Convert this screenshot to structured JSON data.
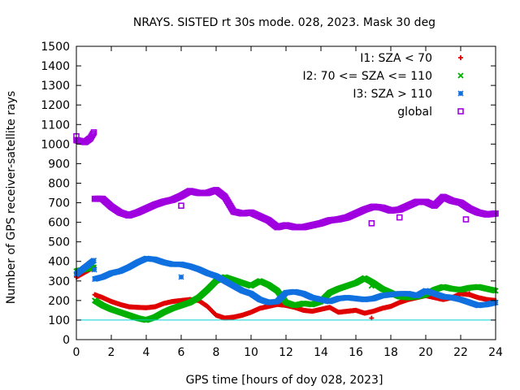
{
  "chart_data": {
    "type": "scatter",
    "title": "NRAYS. SISTED rt 30s mode. 028, 2023. Mask 30 deg",
    "xlabel": "GPS time [hours of doy 028, 2023]",
    "ylabel": "Number of GPS receiver-satellite rays",
    "xlim": [
      0,
      24
    ],
    "ylim": [
      0,
      1500
    ],
    "xticks": [
      "0",
      "2",
      "4",
      "6",
      "8",
      "10",
      "12",
      "14",
      "16",
      "18",
      "20",
      "22",
      "24"
    ],
    "yticks": [
      "0",
      "100",
      "200",
      "300",
      "400",
      "500",
      "600",
      "700",
      "800",
      "900",
      "1000",
      "1100",
      "1200",
      "1300",
      "1400",
      "1500"
    ],
    "grid": false,
    "legend_position": "top-right",
    "threshold_line": {
      "y": 100,
      "color": "#00d0d0"
    },
    "series": [
      {
        "name": "I1: SZA < 70",
        "marker": "+",
        "color": "#e00000",
        "points": [
          [
            0,
            320
          ],
          [
            0.5,
            345
          ],
          [
            1.0,
            370
          ],
          [
            1.05,
            230
          ],
          [
            1.5,
            215
          ],
          [
            2,
            195
          ],
          [
            2.5,
            180
          ],
          [
            3,
            168
          ],
          [
            3.5,
            165
          ],
          [
            4,
            163
          ],
          [
            4.5,
            168
          ],
          [
            5,
            185
          ],
          [
            5.5,
            195
          ],
          [
            6,
            200
          ],
          [
            6.5,
            205
          ],
          [
            7,
            200
          ],
          [
            7.5,
            170
          ],
          [
            8,
            125
          ],
          [
            8.5,
            110
          ],
          [
            9,
            115
          ],
          [
            9.5,
            125
          ],
          [
            10,
            140
          ],
          [
            10.5,
            160
          ],
          [
            11,
            170
          ],
          [
            11.5,
            180
          ],
          [
            12,
            175
          ],
          [
            12.5,
            165
          ],
          [
            13,
            150
          ],
          [
            13.5,
            145
          ],
          [
            14,
            155
          ],
          [
            14.5,
            165
          ],
          [
            15,
            140
          ],
          [
            15.5,
            145
          ],
          [
            16,
            150
          ],
          [
            16.5,
            135
          ],
          [
            17,
            145
          ],
          [
            17.5,
            160
          ],
          [
            18,
            170
          ],
          [
            18.5,
            190
          ],
          [
            19,
            205
          ],
          [
            19.5,
            215
          ],
          [
            20,
            225
          ],
          [
            20.5,
            215
          ],
          [
            21,
            205
          ],
          [
            21.5,
            215
          ],
          [
            22,
            235
          ],
          [
            22.5,
            230
          ],
          [
            23,
            215
          ],
          [
            23.5,
            205
          ],
          [
            24,
            200
          ]
        ]
      },
      {
        "name": "I2: 70 <= SZA <= 110",
        "marker": "x",
        "color": "#00b000",
        "points": [
          [
            0,
            350
          ],
          [
            0.5,
            360
          ],
          [
            1.0,
            370
          ],
          [
            1.05,
            200
          ],
          [
            1.5,
            175
          ],
          [
            2,
            155
          ],
          [
            2.5,
            140
          ],
          [
            3,
            125
          ],
          [
            3.5,
            110
          ],
          [
            4,
            100
          ],
          [
            4.5,
            115
          ],
          [
            5,
            140
          ],
          [
            5.5,
            160
          ],
          [
            6,
            175
          ],
          [
            6.5,
            190
          ],
          [
            7,
            215
          ],
          [
            7.5,
            255
          ],
          [
            8,
            300
          ],
          [
            8.5,
            320
          ],
          [
            9,
            305
          ],
          [
            9.5,
            290
          ],
          [
            10,
            275
          ],
          [
            10.5,
            300
          ],
          [
            11,
            280
          ],
          [
            11.5,
            250
          ],
          [
            12,
            190
          ],
          [
            12.5,
            175
          ],
          [
            13,
            185
          ],
          [
            13.5,
            180
          ],
          [
            14,
            195
          ],
          [
            14.5,
            240
          ],
          [
            15,
            260
          ],
          [
            15.5,
            275
          ],
          [
            16,
            290
          ],
          [
            16.5,
            315
          ],
          [
            17,
            290
          ],
          [
            17.5,
            260
          ],
          [
            18,
            240
          ],
          [
            18.5,
            220
          ],
          [
            19,
            215
          ],
          [
            19.5,
            220
          ],
          [
            20,
            230
          ],
          [
            20.5,
            255
          ],
          [
            21,
            270
          ],
          [
            21.5,
            260
          ],
          [
            22,
            255
          ],
          [
            22.5,
            265
          ],
          [
            23,
            270
          ],
          [
            23.5,
            260
          ],
          [
            24,
            250
          ]
        ]
      },
      {
        "name": "I3: SZA > 110",
        "marker": "*",
        "color": "#1070e0",
        "points": [
          [
            0,
            335
          ],
          [
            0.5,
            370
          ],
          [
            1.0,
            405
          ],
          [
            1.05,
            310
          ],
          [
            1.5,
            320
          ],
          [
            2,
            340
          ],
          [
            2.5,
            350
          ],
          [
            3,
            370
          ],
          [
            3.5,
            395
          ],
          [
            4,
            415
          ],
          [
            4.5,
            410
          ],
          [
            5,
            395
          ],
          [
            5.5,
            385
          ],
          [
            6,
            385
          ],
          [
            6.5,
            375
          ],
          [
            7,
            360
          ],
          [
            7.5,
            340
          ],
          [
            8,
            325
          ],
          [
            8.5,
            300
          ],
          [
            9,
            275
          ],
          [
            9.5,
            250
          ],
          [
            10,
            235
          ],
          [
            10.5,
            205
          ],
          [
            11,
            190
          ],
          [
            11.5,
            195
          ],
          [
            12,
            240
          ],
          [
            12.5,
            245
          ],
          [
            13,
            235
          ],
          [
            13.5,
            215
          ],
          [
            14,
            205
          ],
          [
            14.5,
            195
          ],
          [
            15,
            210
          ],
          [
            15.5,
            215
          ],
          [
            16,
            210
          ],
          [
            16.5,
            205
          ],
          [
            17,
            210
          ],
          [
            17.5,
            225
          ],
          [
            18,
            230
          ],
          [
            18.5,
            235
          ],
          [
            19,
            235
          ],
          [
            19.5,
            225
          ],
          [
            20,
            250
          ],
          [
            20.5,
            235
          ],
          [
            21,
            220
          ],
          [
            21.5,
            215
          ],
          [
            22,
            205
          ],
          [
            22.5,
            190
          ],
          [
            23,
            175
          ],
          [
            23.5,
            180
          ],
          [
            24,
            190
          ]
        ]
      },
      {
        "name": "global",
        "marker": "square",
        "color": "#a000e0",
        "points": [
          [
            0,
            1020
          ],
          [
            0.5,
            1010
          ],
          [
            0.8,
            1030
          ],
          [
            1.0,
            1060
          ],
          [
            1.05,
            720
          ],
          [
            1.5,
            720
          ],
          [
            2,
            680
          ],
          [
            2.5,
            650
          ],
          [
            3,
            635
          ],
          [
            3.5,
            650
          ],
          [
            4,
            670
          ],
          [
            4.5,
            690
          ],
          [
            5,
            705
          ],
          [
            5.5,
            715
          ],
          [
            6,
            735
          ],
          [
            6.5,
            760
          ],
          [
            7,
            750
          ],
          [
            7.5,
            750
          ],
          [
            8,
            765
          ],
          [
            8.5,
            730
          ],
          [
            9,
            655
          ],
          [
            9.5,
            645
          ],
          [
            10,
            650
          ],
          [
            10.5,
            630
          ],
          [
            11,
            610
          ],
          [
            11.5,
            575
          ],
          [
            12,
            585
          ],
          [
            12.5,
            575
          ],
          [
            13,
            575
          ],
          [
            13.5,
            585
          ],
          [
            14,
            595
          ],
          [
            14.5,
            610
          ],
          [
            15,
            615
          ],
          [
            15.5,
            625
          ],
          [
            16,
            645
          ],
          [
            16.5,
            665
          ],
          [
            17,
            680
          ],
          [
            17.5,
            675
          ],
          [
            18,
            660
          ],
          [
            18.5,
            665
          ],
          [
            19,
            685
          ],
          [
            19.5,
            705
          ],
          [
            20,
            705
          ],
          [
            20.5,
            685
          ],
          [
            21,
            730
          ],
          [
            21.5,
            710
          ],
          [
            22,
            700
          ],
          [
            22.5,
            670
          ],
          [
            23,
            650
          ],
          [
            23.5,
            640
          ],
          [
            24,
            645
          ]
        ]
      }
    ],
    "outliers": [
      {
        "series": "global",
        "points": [
          [
            0,
            1040
          ],
          [
            6,
            685
          ],
          [
            16.9,
            595
          ],
          [
            18.5,
            625
          ],
          [
            22.3,
            615
          ]
        ]
      },
      {
        "series": "I3: SZA > 110",
        "points": [
          [
            6,
            320
          ]
        ]
      },
      {
        "series": "I2: 70 <= SZA <= 110",
        "points": [
          [
            16.9,
            275
          ]
        ]
      },
      {
        "series": "I1: SZA < 70",
        "points": [
          [
            16.9,
            110
          ],
          [
            22.5,
            235
          ]
        ]
      }
    ]
  }
}
